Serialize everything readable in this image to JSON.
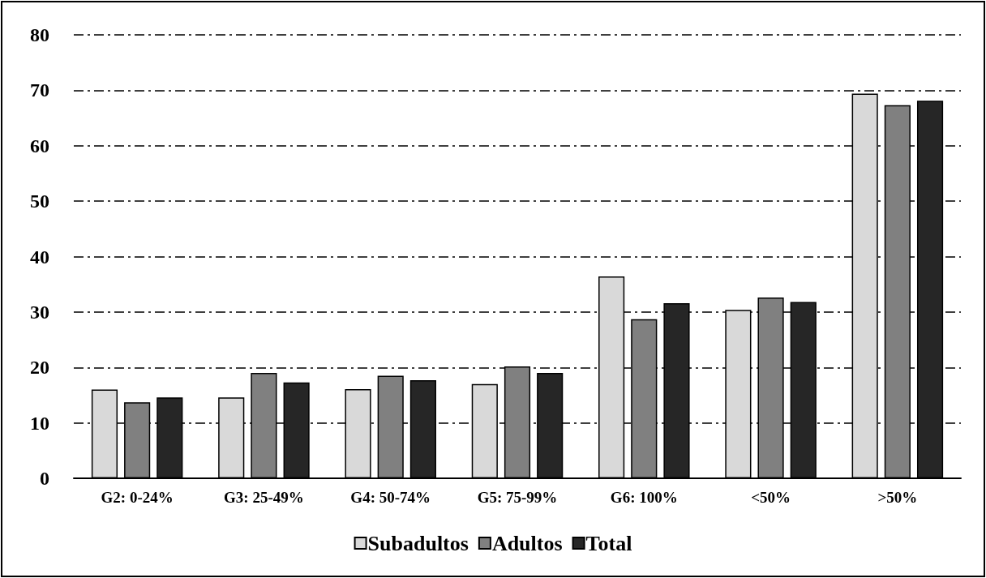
{
  "chart_data": {
    "type": "bar",
    "categories": [
      "G2: 0-24%",
      "G3: 25-49%",
      "G4: 50-74%",
      "G5: 75-99%",
      "G6: 100%",
      "<50%",
      ">50%"
    ],
    "series": [
      {
        "name": "Subadultos",
        "color": "#d9d9d9",
        "values": [
          16.0,
          14.6,
          16.1,
          17.0,
          36.4,
          30.4,
          69.4
        ]
      },
      {
        "name": "Adultos",
        "color": "#808080",
        "values": [
          13.7,
          19.0,
          18.5,
          20.2,
          28.7,
          32.6,
          67.3
        ]
      },
      {
        "name": "Total",
        "color": "#262626",
        "values": [
          14.6,
          17.3,
          17.7,
          19.0,
          31.6,
          31.8,
          68.1
        ]
      }
    ],
    "ylim": [
      0,
      80
    ],
    "yticks": [
      0,
      10,
      20,
      30,
      40,
      50,
      60,
      70,
      80
    ],
    "grid": "y",
    "legend": "bottom"
  }
}
